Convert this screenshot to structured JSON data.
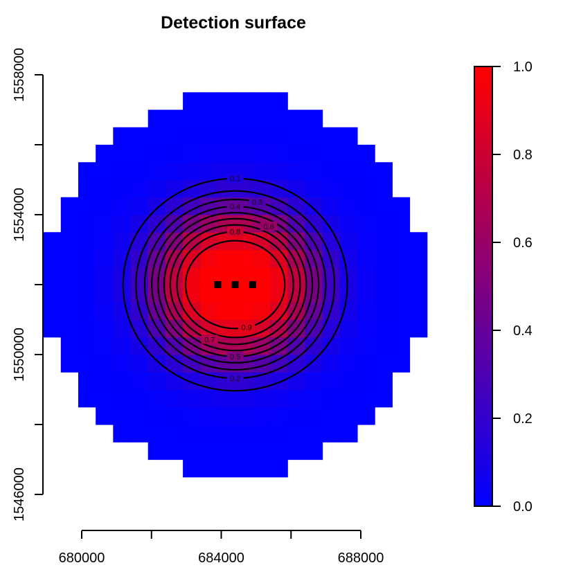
{
  "chart_data": {
    "type": "heatmap",
    "title": "Detection surface",
    "xlabel": "",
    "ylabel": "",
    "x_ticks": [
      680000,
      682000,
      684000,
      686000,
      688000
    ],
    "x_tick_labels": [
      "680000",
      "684000",
      "688000"
    ],
    "y_ticks": [
      1546000,
      1548000,
      1550000,
      1552000,
      1554000,
      1556000,
      1558000
    ],
    "y_tick_labels": [
      "1546000",
      "1550000",
      "1554000",
      "1558000"
    ],
    "xlim": [
      678800,
      689700
    ],
    "ylim": [
      1546000,
      1558000
    ],
    "mask_circle": {
      "center": [
        684400,
        1552000
      ],
      "radius": 5400,
      "cell_size": 500
    },
    "traps": [
      [
        683900,
        1552000
      ],
      [
        684400,
        1552000
      ],
      [
        684900,
        1552000
      ]
    ],
    "contour_levels": [
      0.1,
      0.2,
      0.3,
      0.4,
      0.5,
      0.6,
      0.7,
      0.8,
      0.9
    ],
    "contour_labels": [
      "0.1",
      "0.2",
      "0.3",
      "0.4",
      "0.5",
      "0.6",
      "0.7",
      "0.8",
      "0.9"
    ],
    "colorbar": {
      "min": 0.0,
      "max": 1.0,
      "ticks": [
        "0.0",
        "0.2",
        "0.4",
        "0.6",
        "0.8",
        "1.0"
      ],
      "low_color": "#0000ff",
      "high_color": "#ff0000"
    }
  }
}
